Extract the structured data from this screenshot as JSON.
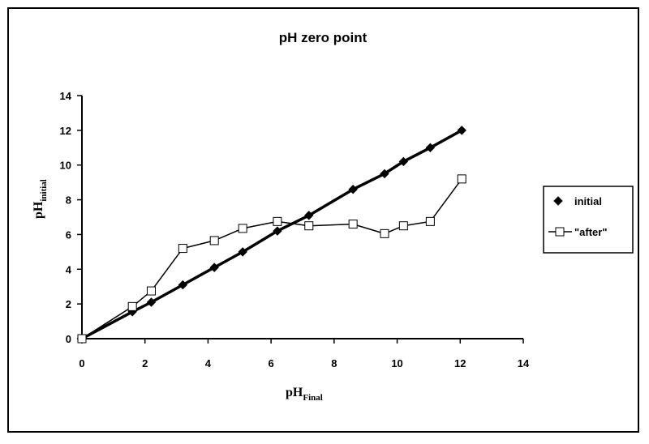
{
  "chart_data": {
    "type": "line",
    "title": "pH zero point",
    "xlabel": {
      "main": "pH",
      "sub": "Final"
    },
    "ylabel": {
      "main": "pH",
      "sub": "initial"
    },
    "xlim": [
      0,
      14
    ],
    "ylim": [
      0,
      14
    ],
    "xticks": [
      0,
      2,
      4,
      6,
      8,
      10,
      12,
      14
    ],
    "yticks": [
      0,
      2,
      4,
      6,
      8,
      10,
      12,
      14
    ],
    "grid": false,
    "legend_position": "right",
    "series": [
      {
        "name": "initial",
        "marker": "diamond",
        "filled": true,
        "color": "#000000",
        "points": [
          [
            0,
            0
          ],
          [
            1.6,
            1.55
          ],
          [
            2.2,
            2.1
          ],
          [
            3.2,
            3.1
          ],
          [
            4.2,
            4.1
          ],
          [
            5.1,
            5.0
          ],
          [
            6.2,
            6.2
          ],
          [
            7.2,
            7.1
          ],
          [
            8.6,
            8.6
          ],
          [
            9.6,
            9.5
          ],
          [
            10.2,
            10.2
          ],
          [
            11.05,
            11.0
          ],
          [
            12.05,
            12.0
          ]
        ]
      },
      {
        "name": "\"after\"",
        "marker": "square",
        "filled": false,
        "color": "#000000",
        "points": [
          [
            0,
            0
          ],
          [
            1.6,
            1.85
          ],
          [
            2.2,
            2.75
          ],
          [
            3.2,
            5.2
          ],
          [
            4.2,
            5.65
          ],
          [
            5.1,
            6.35
          ],
          [
            6.2,
            6.75
          ],
          [
            7.2,
            6.5
          ],
          [
            8.6,
            6.6
          ],
          [
            9.6,
            6.05
          ],
          [
            10.2,
            6.5
          ],
          [
            11.05,
            6.75
          ],
          [
            12.05,
            9.2
          ]
        ]
      }
    ]
  }
}
